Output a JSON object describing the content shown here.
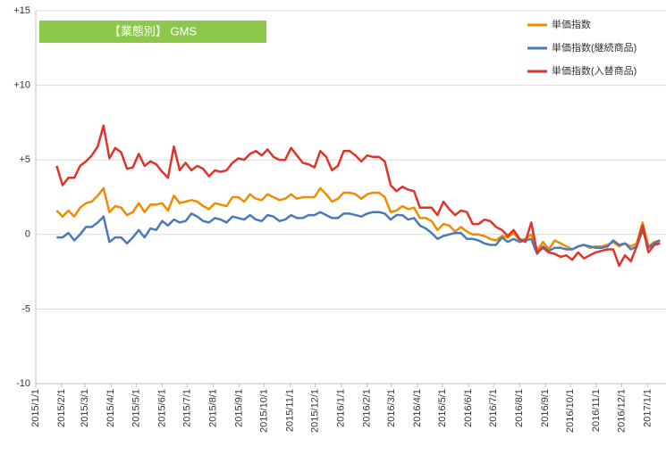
{
  "chart_data": {
    "type": "line",
    "title": "【業態別】 GMS",
    "x": [
      "2015/1/26",
      "2015/2/2",
      "2015/2/9",
      "2015/2/16",
      "2015/2/23",
      "2015/3/2",
      "2015/3/9",
      "2015/3/16",
      "2015/3/23",
      "2015/3/30",
      "2015/4/6",
      "2015/4/13",
      "2015/4/20",
      "2015/4/27",
      "2015/5/4",
      "2015/5/11",
      "2015/5/18",
      "2015/5/25",
      "2015/6/1",
      "2015/6/8",
      "2015/6/15",
      "2015/6/22",
      "2015/6/29",
      "2015/7/6",
      "2015/7/13",
      "2015/7/20",
      "2015/7/27",
      "2015/8/3",
      "2015/8/10",
      "2015/8/17",
      "2015/8/24",
      "2015/8/31",
      "2015/9/7",
      "2015/9/14",
      "2015/9/21",
      "2015/9/28",
      "2015/10/5",
      "2015/10/12",
      "2015/10/19",
      "2015/10/26",
      "2015/11/2",
      "2015/11/9",
      "2015/11/16",
      "2015/11/23",
      "2015/11/30",
      "2015/12/7",
      "2015/12/14",
      "2015/12/21",
      "2015/12/28",
      "2016/1/4",
      "2016/1/11",
      "2016/1/18",
      "2016/1/25",
      "2016/2/1",
      "2016/2/8",
      "2016/2/15",
      "2016/2/22",
      "2016/2/29",
      "2016/3/7",
      "2016/3/14",
      "2016/3/21",
      "2016/3/28",
      "2016/4/4",
      "2016/4/11",
      "2016/4/18",
      "2016/4/25",
      "2016/5/2",
      "2016/5/9",
      "2016/5/16",
      "2016/5/23",
      "2016/5/30",
      "2016/6/6",
      "2016/6/13",
      "2016/6/20",
      "2016/6/27",
      "2016/7/4",
      "2016/7/11",
      "2016/7/18",
      "2016/7/25",
      "2016/8/1",
      "2016/8/8",
      "2016/8/15",
      "2016/8/22",
      "2016/8/29",
      "2016/9/5",
      "2016/9/12",
      "2016/9/19",
      "2016/9/26",
      "2016/10/3",
      "2016/10/10",
      "2016/10/17",
      "2016/10/24",
      "2016/10/31",
      "2016/11/7",
      "2016/11/14",
      "2016/11/21",
      "2016/11/28",
      "2016/12/5",
      "2016/12/12",
      "2016/12/19",
      "2016/12/26",
      "2017/1/2",
      "2017/1/9",
      "2017/1/16"
    ],
    "series": [
      {
        "name": "単価指数",
        "color": "#f08c00",
        "values": [
          1.6,
          1.2,
          1.6,
          1.2,
          1.8,
          2.1,
          2.2,
          2.6,
          3.1,
          1.5,
          1.9,
          1.8,
          1.3,
          1.5,
          2.1,
          1.5,
          2.0,
          2.0,
          2.1,
          1.6,
          2.6,
          2.1,
          2.2,
          2.3,
          2.2,
          1.9,
          1.7,
          2.1,
          2.0,
          1.9,
          2.5,
          2.5,
          2.2,
          2.7,
          2.4,
          2.3,
          2.7,
          2.5,
          2.3,
          2.4,
          2.7,
          2.4,
          2.5,
          2.5,
          2.5,
          3.1,
          2.7,
          2.2,
          2.4,
          2.8,
          2.8,
          2.7,
          2.4,
          2.7,
          2.8,
          2.8,
          2.5,
          1.5,
          1.6,
          1.9,
          1.7,
          1.8,
          1.1,
          1.1,
          0.9,
          0.3,
          0.7,
          0.6,
          0.2,
          0.5,
          0.2,
          0.0,
          0.0,
          -0.1,
          -0.3,
          -0.4,
          -0.1,
          -0.2,
          0.1,
          -0.4,
          -0.3,
          0.0,
          -1.1,
          -0.5,
          -1.0,
          -0.4,
          -0.6,
          -0.8,
          -1.0,
          -0.8,
          -0.7,
          -0.9,
          -0.8,
          -0.8,
          -0.7,
          -0.5,
          -0.8,
          -0.6,
          -0.8,
          -0.6,
          0.8,
          -0.8,
          -0.5,
          -0.4
        ]
      },
      {
        "name": "単価指数(継続商品)",
        "color": "#4a7ab8",
        "values": [
          -0.2,
          -0.2,
          0.1,
          -0.4,
          0.0,
          0.5,
          0.5,
          0.8,
          1.2,
          -0.5,
          -0.2,
          -0.2,
          -0.6,
          -0.2,
          0.3,
          -0.2,
          0.4,
          0.3,
          0.9,
          0.6,
          1.0,
          0.8,
          0.9,
          1.4,
          1.2,
          0.9,
          0.8,
          1.1,
          1.0,
          0.8,
          1.2,
          1.1,
          1.0,
          1.3,
          1.0,
          0.9,
          1.3,
          1.2,
          0.9,
          1.0,
          1.3,
          1.1,
          1.1,
          1.3,
          1.3,
          1.5,
          1.3,
          1.1,
          1.1,
          1.4,
          1.4,
          1.3,
          1.2,
          1.4,
          1.5,
          1.5,
          1.4,
          1.0,
          1.3,
          1.3,
          1.0,
          1.1,
          0.6,
          0.4,
          0.1,
          -0.3,
          -0.1,
          0.0,
          0.1,
          0.1,
          -0.3,
          -0.3,
          -0.4,
          -0.6,
          -0.7,
          -0.7,
          -0.2,
          -0.5,
          -0.3,
          -0.5,
          -0.4,
          -0.3,
          -1.3,
          -0.8,
          -1.1,
          -0.9,
          -0.9,
          -1.0,
          -1.0,
          -0.8,
          -0.7,
          -0.8,
          -0.9,
          -0.9,
          -0.8,
          -0.4,
          -0.7,
          -0.6,
          -1.0,
          -0.8,
          0.3,
          -0.9,
          -0.6,
          -0.4
        ]
      },
      {
        "name": "単価指数(入替商品)",
        "color": "#e0342a",
        "values": [
          4.6,
          3.3,
          3.8,
          3.8,
          4.6,
          4.9,
          5.3,
          5.9,
          7.3,
          5.1,
          5.8,
          5.5,
          4.4,
          4.5,
          5.4,
          4.6,
          4.9,
          4.7,
          4.2,
          3.8,
          5.9,
          4.3,
          4.8,
          4.3,
          4.6,
          4.4,
          3.9,
          4.3,
          4.2,
          4.3,
          4.8,
          5.1,
          5.0,
          5.4,
          5.6,
          5.3,
          5.7,
          5.2,
          5.0,
          5.0,
          5.8,
          5.3,
          4.8,
          4.7,
          4.5,
          5.6,
          5.2,
          4.3,
          4.6,
          5.6,
          5.6,
          5.3,
          4.9,
          5.3,
          5.2,
          5.2,
          4.9,
          3.3,
          2.9,
          3.2,
          3.0,
          2.9,
          1.8,
          1.8,
          1.8,
          1.3,
          2.2,
          1.7,
          1.3,
          1.6,
          1.5,
          0.7,
          0.7,
          1.0,
          0.9,
          0.5,
          0.3,
          -0.1,
          0.3,
          -0.3,
          -0.5,
          0.8,
          -1.2,
          -0.9,
          -1.2,
          -1.3,
          -1.5,
          -1.4,
          -1.7,
          -1.2,
          -1.6,
          -1.4,
          -1.2,
          -1.1,
          -1.0,
          -1.0,
          -2.1,
          -1.4,
          -1.8,
          -0.8,
          0.6,
          -1.2,
          -0.7,
          -0.6
        ]
      }
    ],
    "xlim": [
      "2015/1/1",
      "2017/1/23"
    ],
    "xticks": [
      "2015/1/1",
      "2015/2/1",
      "2015/3/1",
      "2015/4/1",
      "2015/5/1",
      "2015/6/1",
      "2015/7/1",
      "2015/8/1",
      "2015/9/1",
      "2015/10/1",
      "2015/11/1",
      "2015/12/1",
      "2016/1/1",
      "2016/2/1",
      "2016/3/1",
      "2016/4/1",
      "2016/5/1",
      "2016/6/1",
      "2016/7/1",
      "2016/8/1",
      "2016/9/1",
      "2016/10/1",
      "2016/11/1",
      "2016/12/1",
      "2017/1/1"
    ],
    "ylim": [
      -10,
      15
    ],
    "yticks": [
      -10,
      -5,
      0,
      {
        "value": 5,
        "label": "+5"
      },
      {
        "value": 10,
        "label": "+10"
      },
      {
        "value": 15,
        "label": "+15"
      }
    ],
    "grid": true,
    "legend": "top-right",
    "title_color": "#8cc84b"
  }
}
